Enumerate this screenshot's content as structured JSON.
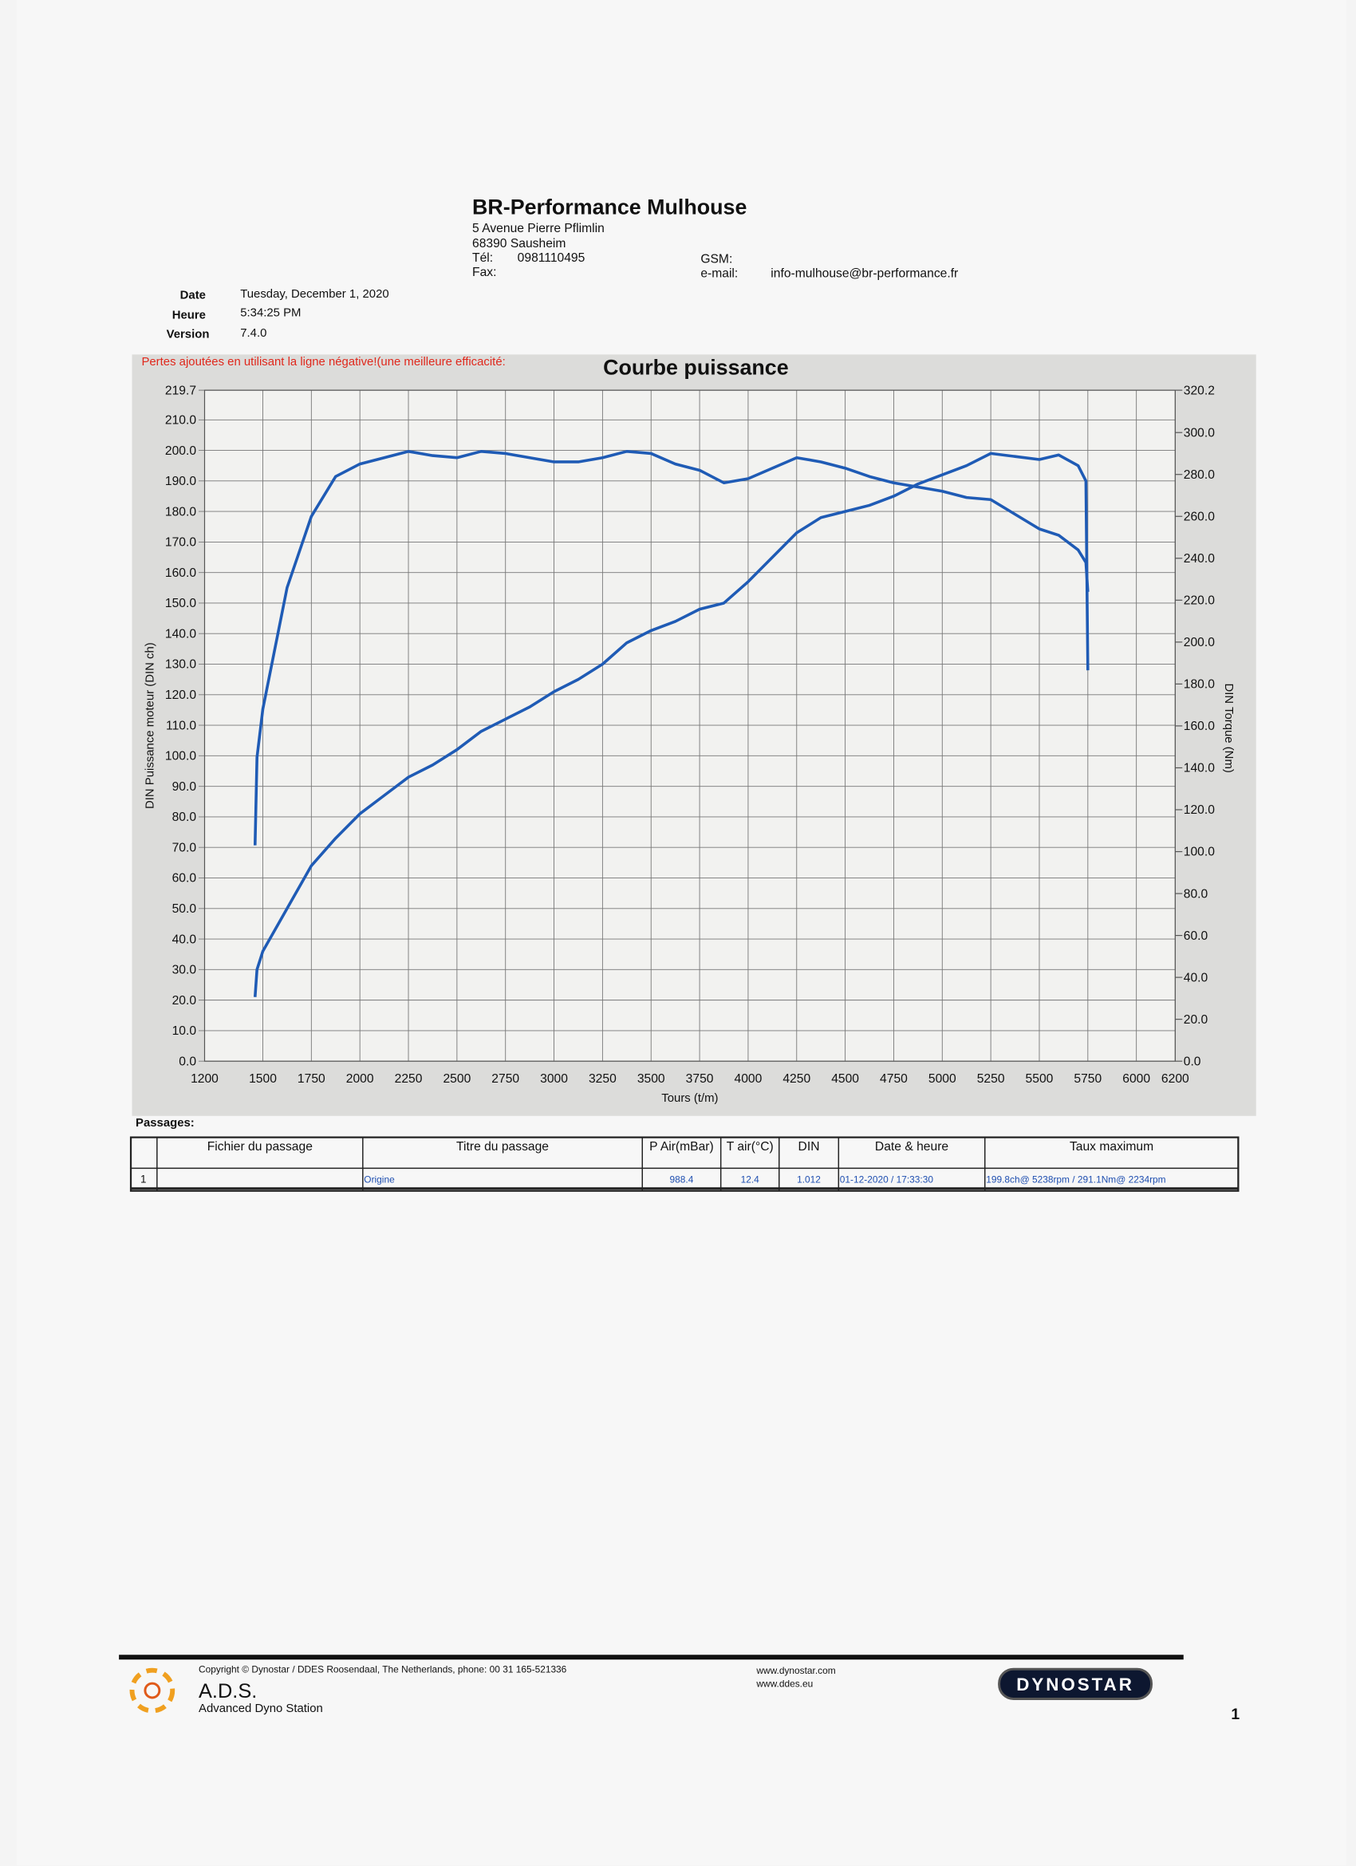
{
  "header": {
    "company": "BR-Performance Mulhouse",
    "address1": "5 Avenue Pierre Pflimlin",
    "address2": "68390 Sausheim",
    "tel_label": "Tél:",
    "tel": "0981110495",
    "fax_label": "Fax:",
    "gsm_label": "GSM:",
    "email_label": "e-mail:",
    "email": "info-mulhouse@br-performance.fr"
  },
  "info": {
    "date_label": "Date",
    "date": "Tuesday, December 1, 2020",
    "time_label": "Heure",
    "time": "5:34:25 PM",
    "version_label": "Version",
    "version": "7.4.0"
  },
  "chart_data": {
    "type": "line",
    "title": "Courbe puissance",
    "annotation": "Pertes ajoutées en utilisant la ligne négative!(une meilleure efficacité:",
    "x_label": "Tours (t/m)",
    "y_label": "DIN Puissance moteur (DIN ch)",
    "y2_label": "DIN Torque (Nm)",
    "grid": true,
    "xlim": [
      1200,
      6200
    ],
    "xticks": [
      1200,
      1500,
      1750,
      2000,
      2250,
      2500,
      2750,
      3000,
      3250,
      3500,
      3750,
      4000,
      4250,
      4500,
      4750,
      5000,
      5250,
      5500,
      5750,
      6000,
      6200
    ],
    "ylim": [
      0,
      219.7
    ],
    "yticks": [
      {
        "value": 0,
        "label": "0.0"
      },
      {
        "value": 10,
        "label": "10.0"
      },
      {
        "value": 20,
        "label": "20.0"
      },
      {
        "value": 30,
        "label": "30.0"
      },
      {
        "value": 40,
        "label": "40.0"
      },
      {
        "value": 50,
        "label": "50.0"
      },
      {
        "value": 60,
        "label": "60.0"
      },
      {
        "value": 70,
        "label": "70.0"
      },
      {
        "value": 80,
        "label": "80.0"
      },
      {
        "value": 90,
        "label": "90.0"
      },
      {
        "value": 100,
        "label": "100.0"
      },
      {
        "value": 110,
        "label": "110.0"
      },
      {
        "value": 120,
        "label": "120.0"
      },
      {
        "value": 130,
        "label": "130.0"
      },
      {
        "value": 140,
        "label": "140.0"
      },
      {
        "value": 150,
        "label": "150.0"
      },
      {
        "value": 160,
        "label": "160.0"
      },
      {
        "value": 170,
        "label": "170.0"
      },
      {
        "value": 180,
        "label": "180.0"
      },
      {
        "value": 190,
        "label": "190.0"
      },
      {
        "value": 200,
        "label": "200.0"
      },
      {
        "value": 210,
        "label": "210.0"
      },
      219.7
    ],
    "y2lim": [
      0,
      320.2
    ],
    "y2ticks": [
      {
        "value": 0,
        "label": "0.0"
      },
      {
        "value": 20,
        "label": "20.0"
      },
      {
        "value": 40,
        "label": "40.0"
      },
      {
        "value": 60,
        "label": "60.0"
      },
      {
        "value": 80,
        "label": "80.0"
      },
      {
        "value": 100,
        "label": "100.0"
      },
      {
        "value": 120,
        "label": "120.0"
      },
      {
        "value": 140,
        "label": "140.0"
      },
      {
        "value": 160,
        "label": "160.0"
      },
      {
        "value": 180,
        "label": "180.0"
      },
      {
        "value": 200,
        "label": "200.0"
      },
      {
        "value": 220,
        "label": "220.0"
      },
      {
        "value": 240,
        "label": "240.0"
      },
      {
        "value": 260,
        "label": "260.0"
      },
      {
        "value": 280,
        "label": "280.0"
      },
      {
        "value": 300,
        "label": "300.0"
      },
      320.2
    ],
    "x": [
      1460,
      1470,
      1500,
      1625,
      1750,
      1875,
      2000,
      2125,
      2250,
      2375,
      2500,
      2625,
      2750,
      2875,
      3000,
      3125,
      3250,
      3375,
      3500,
      3625,
      3750,
      3875,
      4000,
      4125,
      4250,
      4375,
      4500,
      4625,
      4750,
      4875,
      5000,
      5125,
      5250,
      5375,
      5500,
      5600,
      5700,
      5740,
      5750
    ],
    "series": [
      {
        "color": "#1f5bb5",
        "values": [
          21,
          30,
          36,
          50,
          64,
          73,
          81,
          87,
          93,
          97,
          102,
          108,
          112,
          116,
          121,
          125,
          130,
          137,
          141,
          144,
          148,
          150,
          157,
          165,
          173,
          178,
          180,
          182,
          185,
          189,
          192,
          195,
          199,
          198,
          197,
          198.5,
          195,
          190,
          128
        ]
      },
      {
        "color": "#1f5bb5",
        "axis": "y2",
        "values": [
          103,
          145,
          168,
          226,
          260,
          279,
          285,
          288,
          291,
          289,
          288,
          291,
          290,
          288,
          286,
          286,
          288,
          291,
          290,
          285,
          282,
          276,
          278,
          283,
          288,
          286,
          283,
          279,
          276,
          274,
          272,
          269,
          268,
          261,
          254,
          251,
          244,
          238,
          224
        ]
      }
    ]
  },
  "table": {
    "caption": "Passages:",
    "headers": [
      "Fichier du passage",
      "Titre du passage",
      "P Air(mBar)",
      "T air(°C)",
      "DIN",
      "Date & heure",
      "Taux maximum"
    ],
    "row": {
      "index": 1,
      "title": "Origine",
      "p_air": 988.4,
      "t_air": 12.4,
      "din": 1.012,
      "datetime": "01-12-2020 / 17:33:30",
      "max": "199.8ch@ 5238rpm / 291.1Nm@ 2234rpm"
    }
  },
  "footer": {
    "copyright": "Copyright © Dynostar / DDES Roosendaal, The Netherlands, phone: 00 31 165-521336",
    "url1": "www.dynostar.com",
    "url2": "www.ddes.eu",
    "brand": "A.D.S.",
    "brand_sub": "Advanced Dyno Station",
    "logo": "DYNOSTAR",
    "page": "1"
  }
}
